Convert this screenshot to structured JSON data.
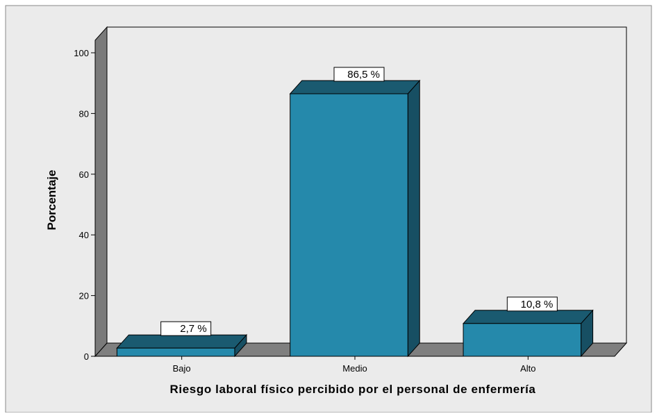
{
  "chart_data": {
    "type": "bar",
    "title": "",
    "xlabel": "Riesgo laboral físico percibido por el personal de enfermería",
    "ylabel": "Porcentaje",
    "categories": [
      "Bajo",
      "Medio",
      "Alto"
    ],
    "values": [
      2.7,
      86.5,
      10.8
    ],
    "data_labels": [
      "2,7 %",
      "86,5 %",
      "10,8 %"
    ],
    "ylim": [
      0,
      100
    ],
    "yticks": [
      0,
      20,
      40,
      60,
      80,
      100
    ],
    "grid": false,
    "legend": "none",
    "style": "3d",
    "colors": {
      "bar_front": "#2589ab",
      "bar_top": "#1a5a70",
      "bar_side": "#174f63",
      "plot_background": "#ebebeb",
      "chart_background": "#ebebeb",
      "depth_wall": "#7a7a7a",
      "floor": "#7f7f7f",
      "label_box": "#ffffff"
    }
  }
}
